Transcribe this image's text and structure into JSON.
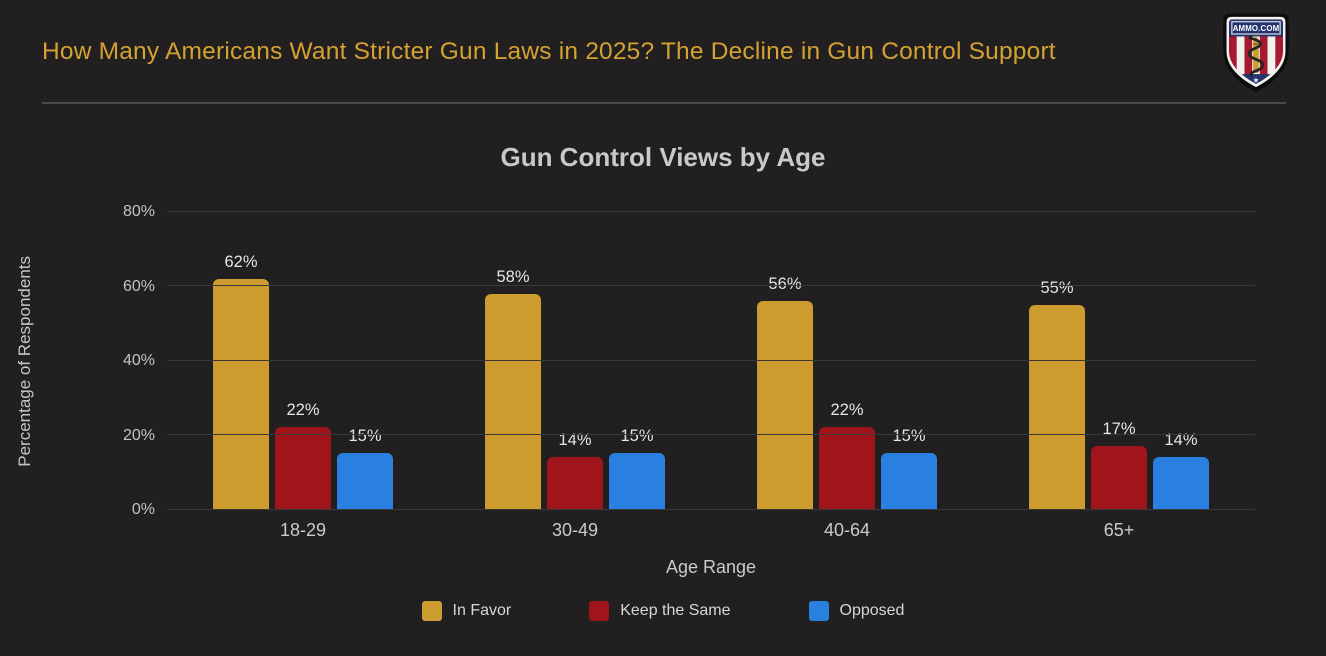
{
  "header": {
    "title": "How Many Americans Want Stricter Gun Laws in 2025? The Decline in Gun Control Support",
    "logo_text": "AMMO.COM"
  },
  "chart_data": {
    "type": "bar",
    "title": "Gun Control Views by Age",
    "xlabel": "Age Range",
    "ylabel": "Percentage of Respondents",
    "categories": [
      "18-29",
      "30-49",
      "40-64",
      "65+"
    ],
    "series": [
      {
        "name": "In Favor",
        "color": "#CC9C2E",
        "values": [
          62,
          58,
          56,
          55
        ]
      },
      {
        "name": "Keep the Same",
        "color": "#A0151C",
        "values": [
          22,
          14,
          22,
          17
        ]
      },
      {
        "name": "Opposed",
        "color": "#2A80E0",
        "values": [
          15,
          15,
          15,
          14
        ]
      }
    ],
    "ylim": [
      0,
      80
    ],
    "yticks": [
      0,
      20,
      40,
      60,
      80
    ],
    "value_suffix": "%",
    "grid": true,
    "legend_position": "bottom"
  },
  "colors": {
    "background": "#211F1F",
    "title_accent": "#D4A231",
    "gridline": "#3A3838",
    "divider": "#4B4848",
    "text": "#CDCBC8"
  }
}
